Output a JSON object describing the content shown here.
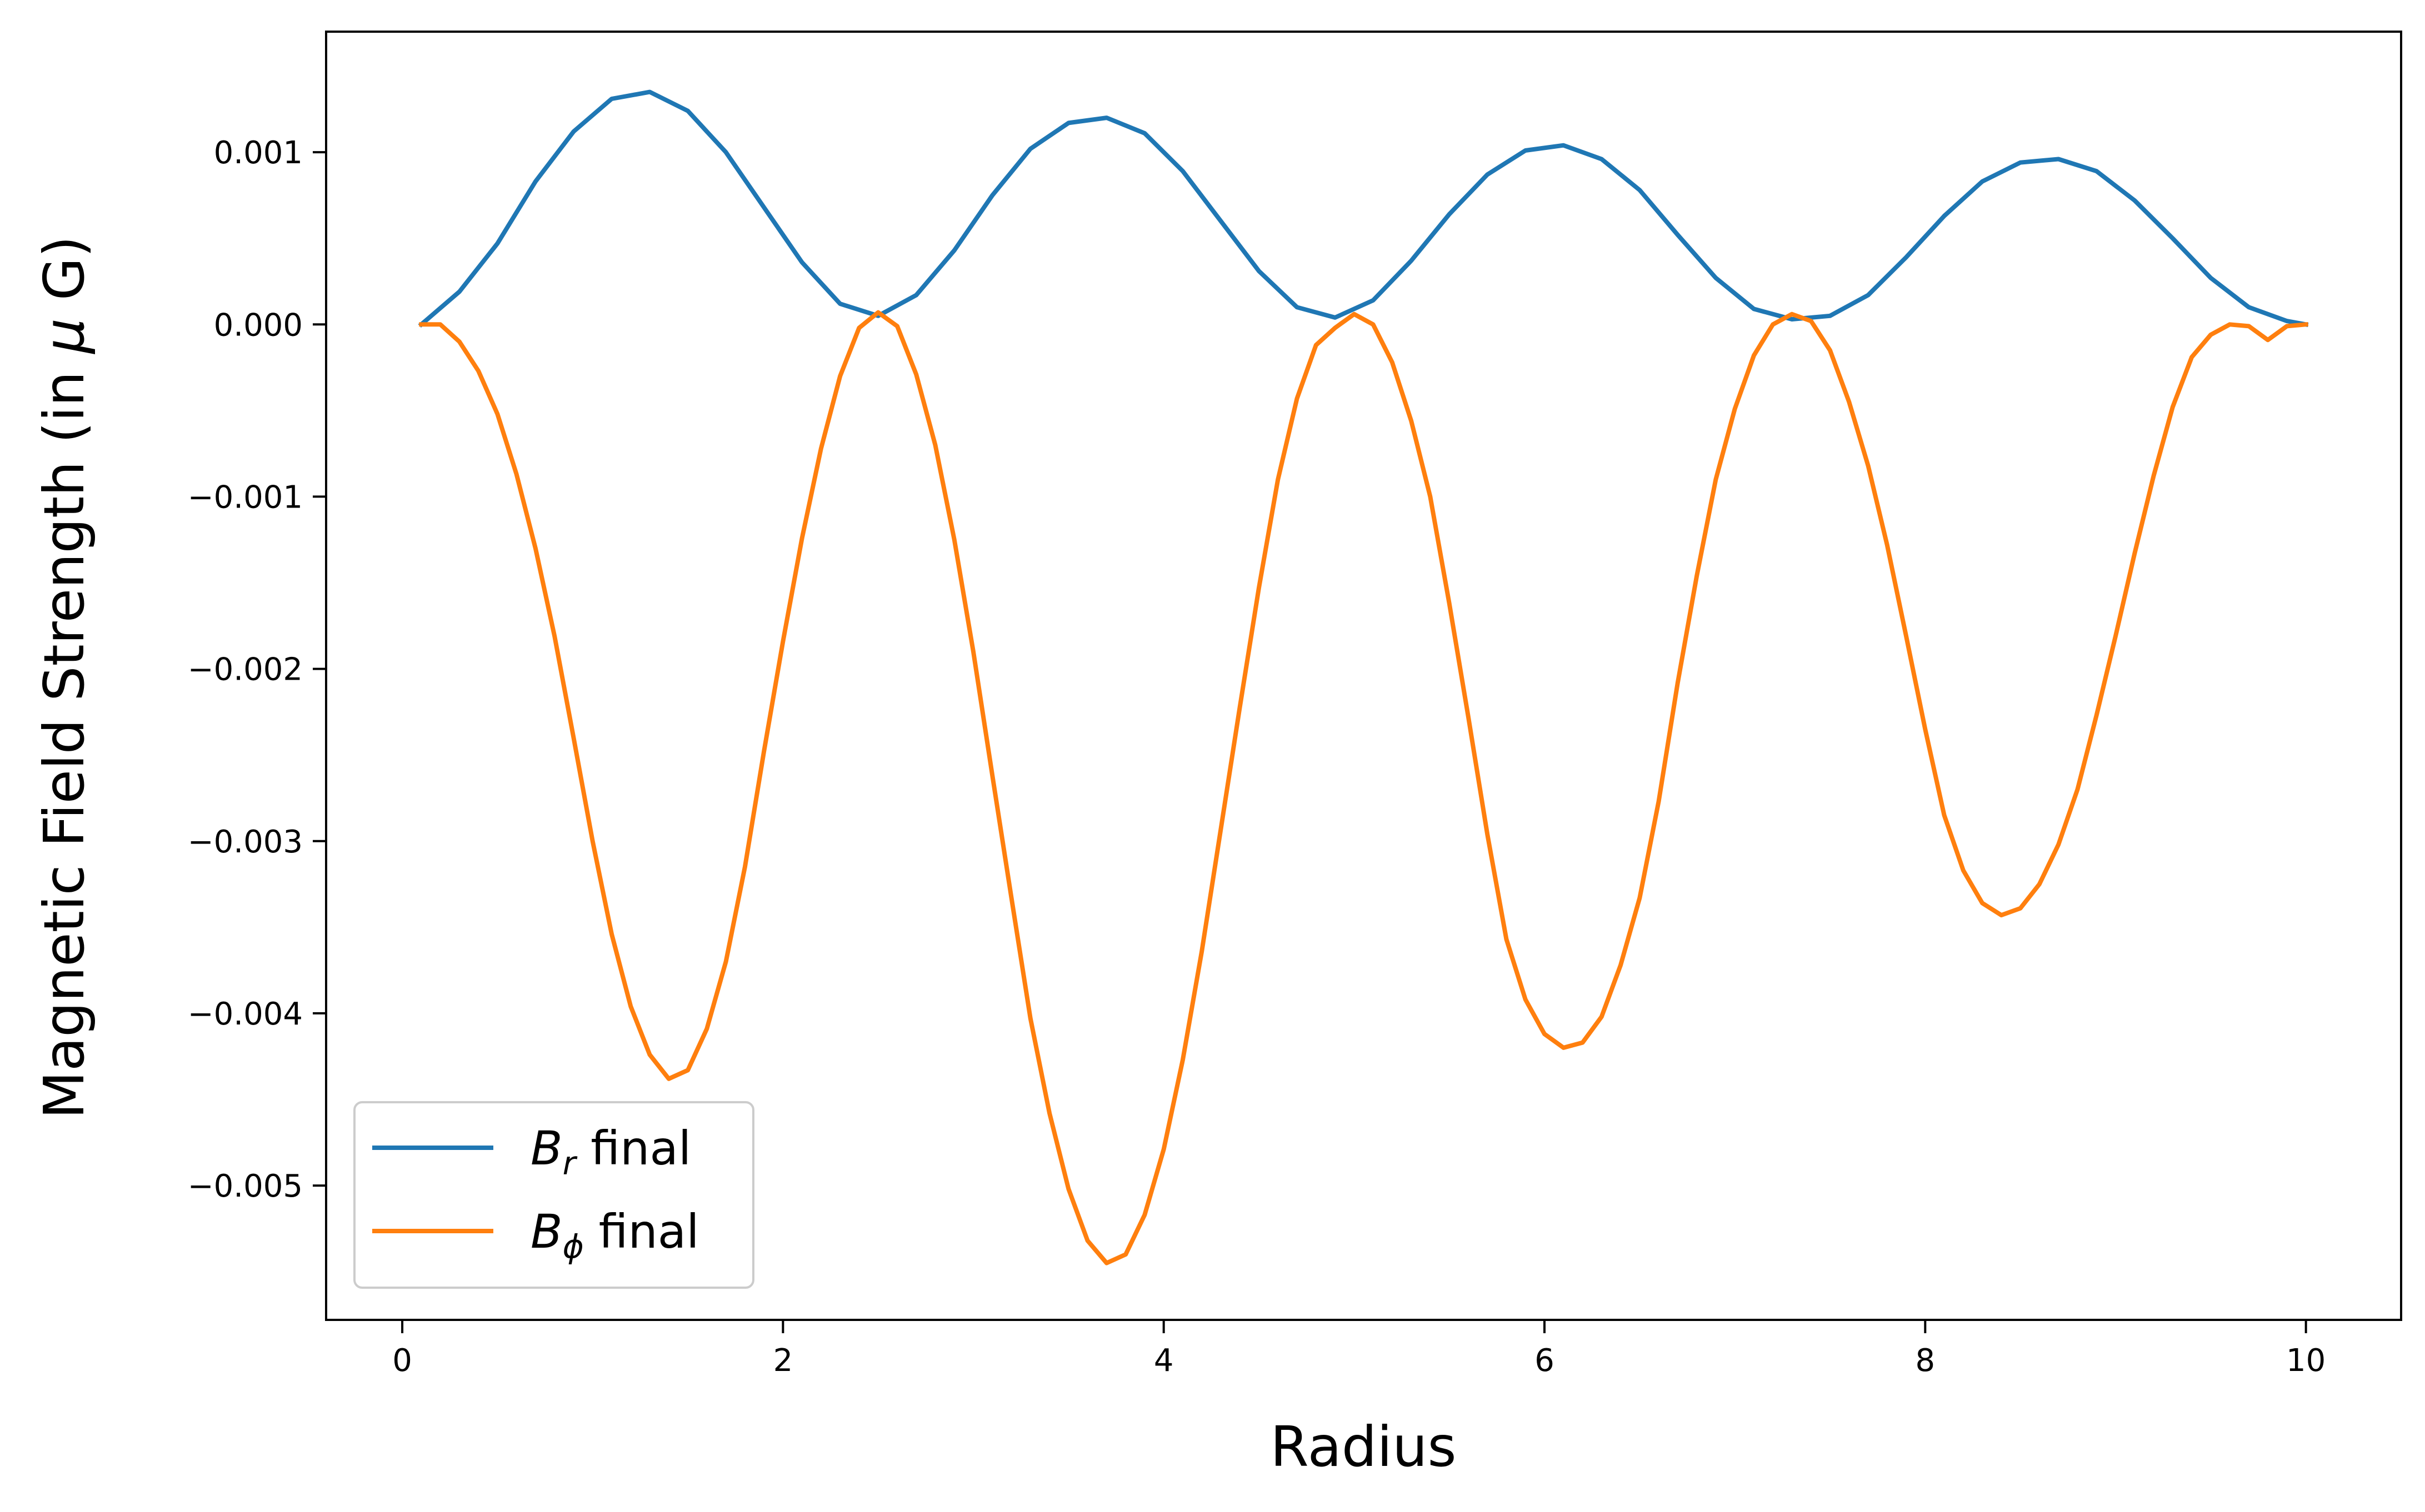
{
  "chart_data": {
    "type": "line",
    "title": "",
    "xlabel": "Radius",
    "ylabel_pre": "Magnetic Field Strength (in ",
    "ylabel_mu": "μ",
    "ylabel_post": " G)",
    "xlim": [
      -0.4,
      10.5
    ],
    "ylim": [
      -0.00578,
      0.0017
    ],
    "x_ticks": [
      0,
      2,
      4,
      6,
      8,
      10
    ],
    "x_tick_labels": [
      "0",
      "2",
      "4",
      "6",
      "8",
      "10"
    ],
    "y_ticks": [
      0.001,
      0.0,
      -0.001,
      -0.002,
      -0.003,
      -0.004,
      -0.005
    ],
    "y_tick_labels": [
      "0.001",
      "0.000",
      "−0.001",
      "−0.002",
      "−0.003",
      "−0.004",
      "−0.005"
    ],
    "grid": false,
    "legend_position": "lower-left",
    "series": [
      {
        "name": "B_r final",
        "legend_main": "B",
        "legend_sub": "r",
        "legend_suffix": " final",
        "color": "#1f77b4",
        "points": [
          [
            0.1,
            0.0
          ],
          [
            0.3,
            0.00019
          ],
          [
            0.5,
            0.00047
          ],
          [
            0.7,
            0.00083
          ],
          [
            0.9,
            0.00112
          ],
          [
            1.1,
            0.00131
          ],
          [
            1.3,
            0.00135
          ],
          [
            1.5,
            0.00124
          ],
          [
            1.7,
            0.001
          ],
          [
            1.9,
            0.00068
          ],
          [
            2.1,
            0.00036
          ],
          [
            2.3,
            0.00012
          ],
          [
            2.5,
            5e-05
          ],
          [
            2.7,
            0.00017
          ],
          [
            2.9,
            0.00043
          ],
          [
            3.1,
            0.00075
          ],
          [
            3.3,
            0.00102
          ],
          [
            3.5,
            0.00117
          ],
          [
            3.7,
            0.0012
          ],
          [
            3.9,
            0.00111
          ],
          [
            4.1,
            0.00089
          ],
          [
            4.3,
            0.0006
          ],
          [
            4.5,
            0.00031
          ],
          [
            4.7,
            0.0001
          ],
          [
            4.9,
            4e-05
          ],
          [
            5.1,
            0.00014
          ],
          [
            5.3,
            0.00037
          ],
          [
            5.5,
            0.00064
          ],
          [
            5.7,
            0.00087
          ],
          [
            5.9,
            0.00101
          ],
          [
            6.1,
            0.00104
          ],
          [
            6.3,
            0.00096
          ],
          [
            6.5,
            0.00078
          ],
          [
            6.7,
            0.00052
          ],
          [
            6.9,
            0.00027
          ],
          [
            7.1,
            9e-05
          ],
          [
            7.3,
            3e-05
          ],
          [
            7.5,
            5e-05
          ],
          [
            7.7,
            0.00017
          ],
          [
            7.9,
            0.00039
          ],
          [
            8.1,
            0.00063
          ],
          [
            8.3,
            0.00083
          ],
          [
            8.5,
            0.00094
          ],
          [
            8.7,
            0.00096
          ],
          [
            8.9,
            0.00089
          ],
          [
            9.1,
            0.00072
          ],
          [
            9.3,
            0.0005
          ],
          [
            9.5,
            0.00027
          ],
          [
            9.7,
            0.0001
          ],
          [
            9.9,
            2e-05
          ],
          [
            10.0,
            0.0
          ]
        ]
      },
      {
        "name": "B_phi final",
        "legend_main": "B",
        "legend_sub": "ϕ",
        "legend_suffix": " final",
        "color": "#ff7f0e",
        "points": [
          [
            0.1,
            0.0
          ],
          [
            0.2,
            0.0
          ],
          [
            0.3,
            -0.0001
          ],
          [
            0.4,
            -0.00027
          ],
          [
            0.5,
            -0.00052
          ],
          [
            0.6,
            -0.00087
          ],
          [
            0.7,
            -0.0013
          ],
          [
            0.8,
            -0.00181
          ],
          [
            0.9,
            -0.0024
          ],
          [
            1.0,
            -0.003
          ],
          [
            1.1,
            -0.00354
          ],
          [
            1.2,
            -0.00396
          ],
          [
            1.3,
            -0.00424
          ],
          [
            1.4,
            -0.00438
          ],
          [
            1.5,
            -0.00433
          ],
          [
            1.6,
            -0.00409
          ],
          [
            1.7,
            -0.0037
          ],
          [
            1.8,
            -0.00315
          ],
          [
            1.9,
            -0.00248
          ],
          [
            2.0,
            -0.00184
          ],
          [
            2.1,
            -0.00124
          ],
          [
            2.2,
            -0.00072
          ],
          [
            2.3,
            -0.0003
          ],
          [
            2.4,
            -2e-05
          ],
          [
            2.5,
            7e-05
          ],
          [
            2.6,
            -1e-05
          ],
          [
            2.7,
            -0.00029
          ],
          [
            2.8,
            -0.0007
          ],
          [
            2.9,
            -0.00125
          ],
          [
            3.0,
            -0.0019
          ],
          [
            3.1,
            -0.00262
          ],
          [
            3.2,
            -0.00333
          ],
          [
            3.3,
            -0.00403
          ],
          [
            3.4,
            -0.00458
          ],
          [
            3.5,
            -0.00502
          ],
          [
            3.6,
            -0.00532
          ],
          [
            3.7,
            -0.00545
          ],
          [
            3.8,
            -0.0054
          ],
          [
            3.9,
            -0.00517
          ],
          [
            4.0,
            -0.00479
          ],
          [
            4.1,
            -0.00427
          ],
          [
            4.2,
            -0.00364
          ],
          [
            4.3,
            -0.00293
          ],
          [
            4.4,
            -0.00222
          ],
          [
            4.5,
            -0.00153
          ],
          [
            4.6,
            -0.0009
          ],
          [
            4.7,
            -0.00043
          ],
          [
            4.8,
            -0.00012
          ],
          [
            4.9,
            -2e-05
          ],
          [
            5.0,
            6e-05
          ],
          [
            5.1,
            0.0
          ],
          [
            5.2,
            -0.00022
          ],
          [
            5.3,
            -0.00056
          ],
          [
            5.4,
            -0.001
          ],
          [
            5.5,
            -0.00162
          ],
          [
            5.6,
            -0.00228
          ],
          [
            5.7,
            -0.00296
          ],
          [
            5.8,
            -0.00357
          ],
          [
            5.9,
            -0.00392
          ],
          [
            6.0,
            -0.00412
          ],
          [
            6.1,
            -0.0042
          ],
          [
            6.2,
            -0.00417
          ],
          [
            6.3,
            -0.00402
          ],
          [
            6.4,
            -0.00372
          ],
          [
            6.5,
            -0.00333
          ],
          [
            6.6,
            -0.00277
          ],
          [
            6.7,
            -0.00208
          ],
          [
            6.8,
            -0.00146
          ],
          [
            6.9,
            -0.0009
          ],
          [
            7.0,
            -0.00049
          ],
          [
            7.1,
            -0.00018
          ],
          [
            7.2,
            0.0
          ],
          [
            7.3,
            6e-05
          ],
          [
            7.4,
            2e-05
          ],
          [
            7.5,
            -0.00015
          ],
          [
            7.6,
            -0.00045
          ],
          [
            7.7,
            -0.00082
          ],
          [
            7.8,
            -0.00128
          ],
          [
            7.9,
            -0.00181
          ],
          [
            8.0,
            -0.00235
          ],
          [
            8.1,
            -0.00285
          ],
          [
            8.2,
            -0.00317
          ],
          [
            8.3,
            -0.00336
          ],
          [
            8.4,
            -0.00343
          ],
          [
            8.5,
            -0.00339
          ],
          [
            8.6,
            -0.00325
          ],
          [
            8.7,
            -0.00302
          ],
          [
            8.8,
            -0.0027
          ],
          [
            8.9,
            -0.00227
          ],
          [
            9.0,
            -0.00181
          ],
          [
            9.1,
            -0.00133
          ],
          [
            9.2,
            -0.00088
          ],
          [
            9.3,
            -0.00048
          ],
          [
            9.4,
            -0.00019
          ],
          [
            9.5,
            -6e-05
          ],
          [
            9.6,
            0.0
          ],
          [
            9.7,
            -1e-05
          ],
          [
            9.8,
            -9e-05
          ],
          [
            9.9,
            -1e-05
          ],
          [
            10.0,
            0.0
          ]
        ]
      }
    ]
  }
}
